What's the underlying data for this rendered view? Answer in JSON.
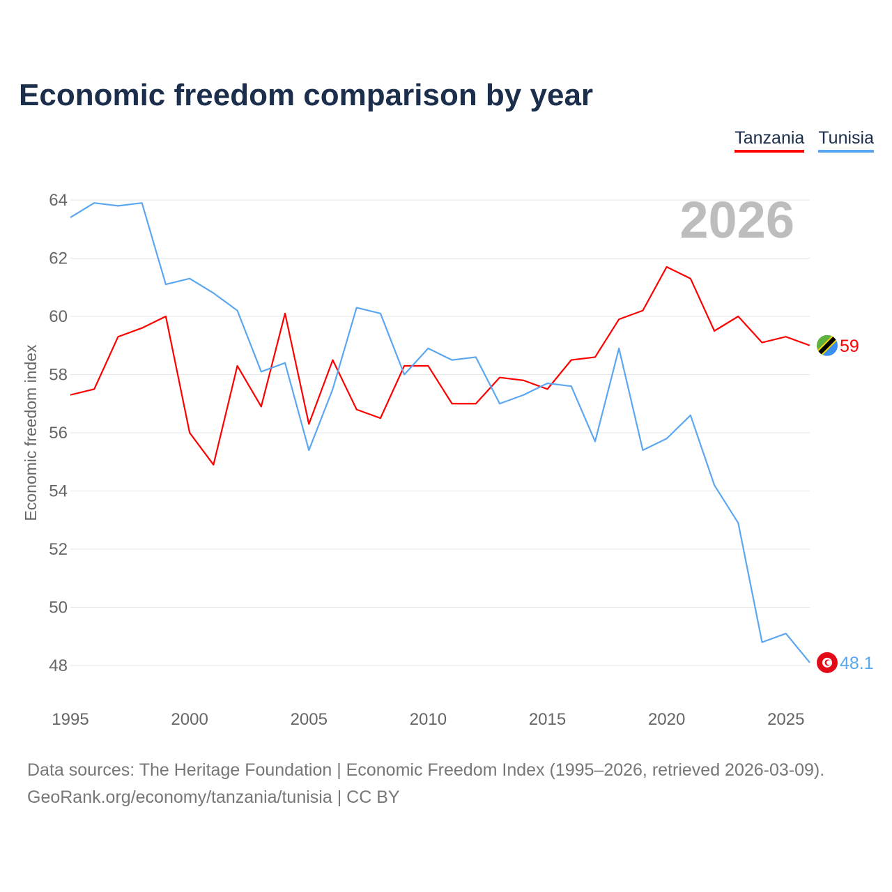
{
  "chart_data": {
    "type": "line",
    "title": "Economic freedom comparison by year",
    "xlabel": "",
    "ylabel": "Economic freedom index",
    "xlim": [
      1995,
      2026
    ],
    "ylim": [
      48,
      64
    ],
    "grid": true,
    "legend_position": "top-right",
    "year_watermark": "2026",
    "x_ticks": [
      "1995",
      "2000",
      "2005",
      "2010",
      "2015",
      "2020",
      "2025"
    ],
    "y_ticks": [
      "48",
      "50",
      "52",
      "54",
      "56",
      "58",
      "60",
      "62",
      "64"
    ],
    "x": [
      1995,
      1996,
      1997,
      1998,
      1999,
      2000,
      2001,
      2002,
      2003,
      2004,
      2005,
      2006,
      2007,
      2008,
      2009,
      2010,
      2011,
      2012,
      2013,
      2014,
      2015,
      2016,
      2017,
      2018,
      2019,
      2020,
      2021,
      2022,
      2023,
      2024,
      2025,
      2026
    ],
    "series": [
      {
        "name": "Tanzania",
        "color": "#ff0000",
        "end_label": "59",
        "values": [
          57.3,
          57.5,
          59.3,
          59.6,
          60.0,
          56.0,
          54.9,
          58.3,
          56.9,
          60.1,
          56.3,
          58.5,
          56.8,
          56.5,
          58.3,
          58.3,
          57.0,
          57.0,
          57.9,
          57.8,
          57.5,
          58.5,
          58.6,
          59.9,
          60.2,
          61.7,
          61.3,
          59.5,
          60.0,
          59.1,
          59.3,
          59.0
        ]
      },
      {
        "name": "Tunisia",
        "color": "#5ba7f0",
        "end_label": "48.1",
        "values": [
          63.4,
          63.9,
          63.8,
          63.9,
          61.1,
          61.3,
          60.8,
          60.2,
          58.1,
          58.4,
          55.4,
          57.5,
          60.3,
          60.1,
          58.0,
          58.9,
          58.5,
          58.6,
          57.0,
          57.3,
          57.7,
          57.6,
          55.7,
          58.9,
          55.4,
          55.8,
          56.6,
          54.2,
          52.9,
          48.8,
          49.1,
          48.1
        ]
      }
    ]
  },
  "source": {
    "line1": "Data sources: The Heritage Foundation | Economic Freedom Index (1995–2026, retrieved 2026-03-09).",
    "line2": "GeoRank.org/economy/tanzania/tunisia | CC BY"
  }
}
